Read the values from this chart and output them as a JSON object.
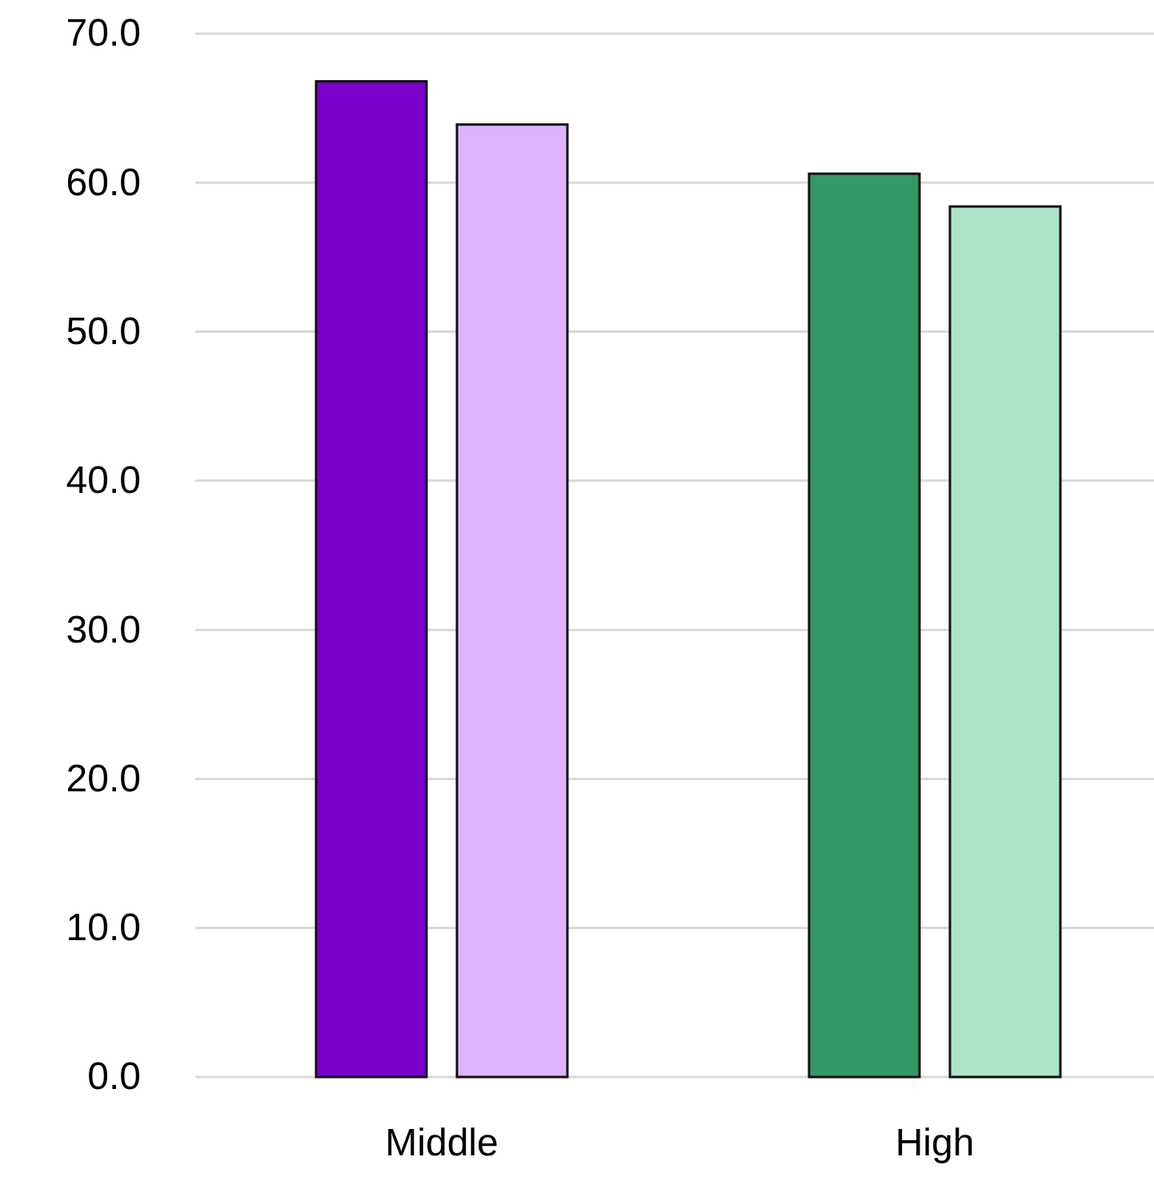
{
  "chart_data": {
    "type": "bar",
    "categories": [
      "Middle",
      "High"
    ],
    "series": [
      {
        "values": [
          66.8,
          60.6
        ],
        "colors": [
          "#7a00cc",
          "#339966"
        ]
      },
      {
        "values": [
          63.9,
          58.4
        ],
        "colors": [
          "#deb4fc",
          "#ade3c8"
        ]
      }
    ],
    "ylim": [
      0,
      70
    ],
    "yticks": [
      {
        "value": 0,
        "label": "0.0"
      },
      {
        "value": 10,
        "label": "10.0"
      },
      {
        "value": 20,
        "label": "20.0"
      },
      {
        "value": 30,
        "label": "30.0"
      },
      {
        "value": 40,
        "label": "40.0"
      },
      {
        "value": 50,
        "label": "50.0"
      },
      {
        "value": 60,
        "label": "60.0"
      },
      {
        "value": 70,
        "label": "70.0"
      }
    ],
    "grid": "y"
  }
}
